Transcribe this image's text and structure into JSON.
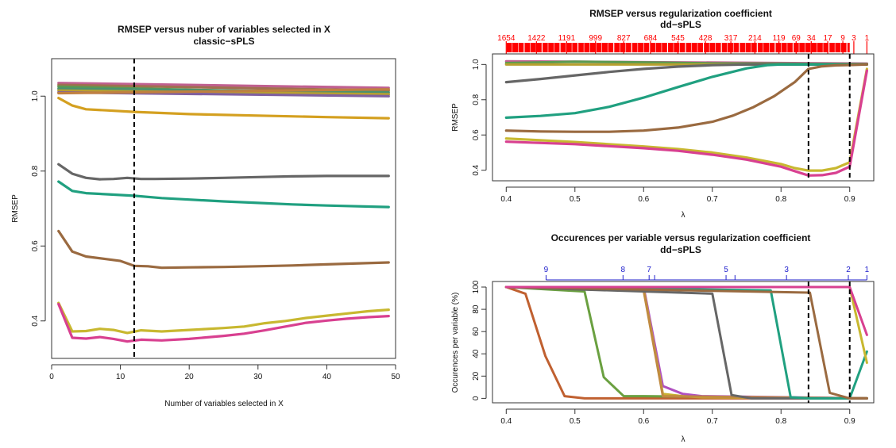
{
  "chart_data": [
    {
      "type": "line",
      "title": "RMSEP versus nuber of variables selected in X",
      "subtitle": "classic−sPLS",
      "xlabel": "Number of variables selected in X",
      "ylabel": "RMSEP",
      "xlim": [
        0,
        50
      ],
      "ylim": [
        0.3,
        1.1
      ],
      "xticks": [
        0,
        10,
        20,
        30,
        40,
        50
      ],
      "yticks": [
        0.4,
        0.6,
        0.8,
        1.0
      ],
      "xtick_labels": [
        "0",
        "10",
        "20",
        "30",
        "40",
        "50"
      ],
      "ytick_labels": [
        "0.4",
        "0.6",
        "0.8",
        "1.0"
      ],
      "vline": 12,
      "grid": false,
      "series": [
        {
          "color": "#c06090",
          "x": [
            1,
            49
          ],
          "y": [
            1.035,
            1.022
          ]
        },
        {
          "color": "#a07050",
          "x": [
            1,
            49
          ],
          "y": [
            1.03,
            1.015
          ]
        },
        {
          "color": "#5a9a50",
          "x": [
            1,
            49
          ],
          "y": [
            1.025,
            1.005
          ]
        },
        {
          "color": "#4a9070",
          "x": [
            1,
            49
          ],
          "y": [
            1.02,
            1.01
          ]
        },
        {
          "color": "#b8a030",
          "x": [
            1,
            49
          ],
          "y": [
            1.015,
            1.005
          ]
        },
        {
          "color": "#8060a0",
          "x": [
            1,
            49
          ],
          "y": [
            1.01,
            1.0
          ]
        },
        {
          "color": "#c08040",
          "x": [
            1,
            49
          ],
          "y": [
            1.008,
            1.018
          ]
        },
        {
          "color": "#d4a020",
          "x": [
            1,
            3,
            5,
            8,
            12,
            20,
            30,
            40,
            49
          ],
          "y": [
            0.995,
            0.975,
            0.965,
            0.962,
            0.958,
            0.952,
            0.948,
            0.944,
            0.941
          ]
        },
        {
          "color": "#666666",
          "x": [
            1,
            3,
            5,
            7,
            9,
            11,
            13,
            15,
            20,
            25,
            30,
            35,
            40,
            49
          ],
          "y": [
            0.818,
            0.793,
            0.782,
            0.778,
            0.779,
            0.782,
            0.779,
            0.779,
            0.78,
            0.782,
            0.784,
            0.786,
            0.787,
            0.787
          ]
        },
        {
          "color": "#20a080",
          "x": [
            1,
            3,
            5,
            8,
            12,
            16,
            20,
            25,
            30,
            35,
            40,
            49
          ],
          "y": [
            0.772,
            0.747,
            0.741,
            0.738,
            0.734,
            0.728,
            0.724,
            0.719,
            0.715,
            0.711,
            0.708,
            0.704
          ]
        },
        {
          "color": "#9a6a40",
          "x": [
            1,
            3,
            5,
            8,
            10,
            12,
            14,
            16,
            20,
            25,
            30,
            35,
            40,
            49
          ],
          "y": [
            0.64,
            0.585,
            0.572,
            0.565,
            0.56,
            0.547,
            0.546,
            0.542,
            0.543,
            0.544,
            0.546,
            0.548,
            0.551,
            0.556
          ]
        },
        {
          "color": "#c8b830",
          "x": [
            1,
            3,
            5,
            7,
            9,
            11,
            13,
            16,
            20,
            25,
            28,
            31,
            34,
            37,
            40,
            43,
            46,
            49
          ],
          "y": [
            0.448,
            0.372,
            0.373,
            0.379,
            0.376,
            0.368,
            0.375,
            0.372,
            0.376,
            0.381,
            0.385,
            0.394,
            0.4,
            0.408,
            0.414,
            0.42,
            0.426,
            0.43
          ]
        },
        {
          "color": "#d84090",
          "x": [
            1,
            3,
            5,
            7,
            9,
            11,
            13,
            16,
            20,
            25,
            28,
            31,
            34,
            37,
            40,
            43,
            46,
            49
          ],
          "y": [
            0.445,
            0.355,
            0.353,
            0.357,
            0.352,
            0.345,
            0.35,
            0.348,
            0.352,
            0.36,
            0.366,
            0.375,
            0.385,
            0.395,
            0.401,
            0.406,
            0.41,
            0.413
          ]
        }
      ]
    },
    {
      "type": "line",
      "title": "RMSEP versus regularization coefficient",
      "subtitle": "dd−sPLS",
      "xlabel": "λ",
      "ylabel": "RMSEP",
      "xlim": [
        0.38,
        0.935
      ],
      "ylim": [
        0.34,
        1.06
      ],
      "xticks": [
        0.4,
        0.5,
        0.6,
        0.7,
        0.8,
        0.9
      ],
      "yticks": [
        0.4,
        0.6,
        0.8,
        1.0
      ],
      "xtick_labels": [
        "0.4",
        "0.5",
        "0.6",
        "0.7",
        "0.8",
        "0.9"
      ],
      "ytick_labels": [
        "0.4",
        "0.6",
        "0.8",
        "1.0"
      ],
      "vlines": [
        0.84,
        0.9
      ],
      "top_labels": [
        "1654",
        "1422",
        "1191",
        "999",
        "827",
        "684",
        "545",
        "428",
        "317",
        "214",
        "119",
        "69",
        "34",
        "17",
        "9",
        "3",
        "1"
      ],
      "top_label_x": [
        0.4,
        0.444,
        0.488,
        0.53,
        0.571,
        0.61,
        0.65,
        0.69,
        0.727,
        0.762,
        0.797,
        0.822,
        0.844,
        0.868,
        0.89,
        0.906,
        0.925
      ],
      "top_labels_color": "#ff0000",
      "rug_color": "#ff0000",
      "grid": false,
      "series": [
        {
          "color": "#c06090",
          "x": [
            0.4,
            0.925
          ],
          "y": [
            1.018,
            1.005
          ]
        },
        {
          "color": "#5a9a50",
          "x": [
            0.4,
            0.5,
            0.6,
            0.7,
            0.8,
            0.925
          ],
          "y": [
            1.008,
            1.016,
            1.012,
            1.006,
            1.004,
            1.002
          ]
        },
        {
          "color": "#b8a030",
          "x": [
            0.4,
            0.925
          ],
          "y": [
            1.0,
            1.0
          ]
        },
        {
          "color": "#666666",
          "x": [
            0.4,
            0.45,
            0.5,
            0.55,
            0.6,
            0.65,
            0.7,
            0.75,
            0.8,
            0.925
          ],
          "y": [
            0.9,
            0.918,
            0.938,
            0.958,
            0.975,
            0.988,
            0.996,
            1.0,
            1.0,
            1.0
          ]
        },
        {
          "color": "#20a080",
          "x": [
            0.4,
            0.45,
            0.5,
            0.55,
            0.6,
            0.65,
            0.7,
            0.75,
            0.78,
            0.8,
            0.925
          ],
          "y": [
            0.698,
            0.708,
            0.724,
            0.76,
            0.812,
            0.872,
            0.93,
            0.978,
            0.996,
            1.0,
            1.0
          ]
        },
        {
          "color": "#9a6a40",
          "x": [
            0.4,
            0.45,
            0.5,
            0.55,
            0.6,
            0.65,
            0.7,
            0.73,
            0.76,
            0.79,
            0.82,
            0.84,
            0.86,
            0.88,
            0.9,
            0.925
          ],
          "y": [
            0.625,
            0.62,
            0.618,
            0.618,
            0.625,
            0.642,
            0.675,
            0.71,
            0.758,
            0.82,
            0.9,
            0.975,
            0.99,
            0.995,
            0.997,
            1.0
          ]
        },
        {
          "color": "#c8b830",
          "x": [
            0.4,
            0.5,
            0.6,
            0.65,
            0.7,
            0.75,
            0.8,
            0.82,
            0.84,
            0.86,
            0.88,
            0.9,
            0.925
          ],
          "y": [
            0.58,
            0.56,
            0.535,
            0.52,
            0.5,
            0.472,
            0.435,
            0.412,
            0.398,
            0.398,
            0.412,
            0.445,
            0.975
          ]
        },
        {
          "color": "#d84090",
          "x": [
            0.4,
            0.5,
            0.6,
            0.65,
            0.7,
            0.75,
            0.8,
            0.82,
            0.84,
            0.86,
            0.88,
            0.9,
            0.925
          ],
          "y": [
            0.562,
            0.548,
            0.525,
            0.51,
            0.488,
            0.46,
            0.42,
            0.395,
            0.37,
            0.372,
            0.385,
            0.42,
            0.965
          ]
        }
      ]
    },
    {
      "type": "line",
      "title": "Occurences per variable versus regularization coefficient",
      "subtitle": "dd−sPLS",
      "xlabel": "λ",
      "ylabel": "Occurences per variable (%)",
      "xlim": [
        0.38,
        0.935
      ],
      "ylim": [
        -4,
        105
      ],
      "xticks": [
        0.4,
        0.5,
        0.6,
        0.7,
        0.8,
        0.9
      ],
      "yticks": [
        0,
        20,
        40,
        60,
        80,
        100
      ],
      "xtick_labels": [
        "0.4",
        "0.5",
        "0.6",
        "0.7",
        "0.8",
        "0.9"
      ],
      "ytick_labels": [
        "0",
        "20",
        "40",
        "60",
        "80",
        "100"
      ],
      "vlines": [
        0.84,
        0.9
      ],
      "top_labels": [
        "9",
        "8",
        "7",
        "5",
        "3",
        "2",
        "1"
      ],
      "top_label_x": [
        0.458,
        0.57,
        0.608,
        0.72,
        0.808,
        0.898,
        0.925
      ],
      "top_ticks_x": [
        0.458,
        0.57,
        0.608,
        0.616,
        0.72,
        0.733,
        0.808,
        0.898,
        0.925
      ],
      "top_labels_color": "#2020cc",
      "grid": false,
      "series": [
        {
          "color": "#c06030",
          "x": [
            0.4,
            0.428,
            0.457,
            0.485,
            0.514,
            0.925
          ],
          "y": [
            100,
            94,
            38,
            2,
            0,
            0
          ]
        },
        {
          "color": "#6aa040",
          "x": [
            0.4,
            0.514,
            0.542,
            0.571,
            0.6,
            0.925
          ],
          "y": [
            100,
            96,
            19,
            2,
            2,
            0
          ]
        },
        {
          "color": "#b050c0",
          "x": [
            0.4,
            0.6,
            0.628,
            0.657,
            0.685,
            0.925
          ],
          "y": [
            100,
            100,
            11,
            4,
            2,
            0
          ]
        },
        {
          "color": "#c8b030",
          "x": [
            0.4,
            0.6,
            0.628,
            0.657,
            0.685,
            0.925
          ],
          "y": [
            100,
            98,
            4,
            2,
            1,
            0
          ]
        },
        {
          "color": "#c08a40",
          "x": [
            0.4,
            0.6,
            0.628,
            0.925
          ],
          "y": [
            100,
            97,
            2,
            0
          ]
        },
        {
          "color": "#666666",
          "x": [
            0.4,
            0.7,
            0.728,
            0.757,
            0.925
          ],
          "y": [
            100,
            94,
            3,
            0,
            0
          ]
        },
        {
          "color": "#20a080",
          "x": [
            0.4,
            0.785,
            0.814,
            0.842,
            0.9,
            0.925
          ],
          "y": [
            100,
            97,
            1,
            0,
            0,
            42
          ]
        },
        {
          "color": "#9a6a40",
          "x": [
            0.4,
            0.842,
            0.871,
            0.9,
            0.925
          ],
          "y": [
            100,
            95,
            5,
            0,
            0
          ]
        },
        {
          "color": "#c8b830",
          "x": [
            0.4,
            0.9,
            0.925
          ],
          "y": [
            100,
            100,
            32
          ]
        },
        {
          "color": "#d84090",
          "x": [
            0.4,
            0.9,
            0.925
          ],
          "y": [
            100,
            100,
            57
          ]
        }
      ]
    }
  ]
}
